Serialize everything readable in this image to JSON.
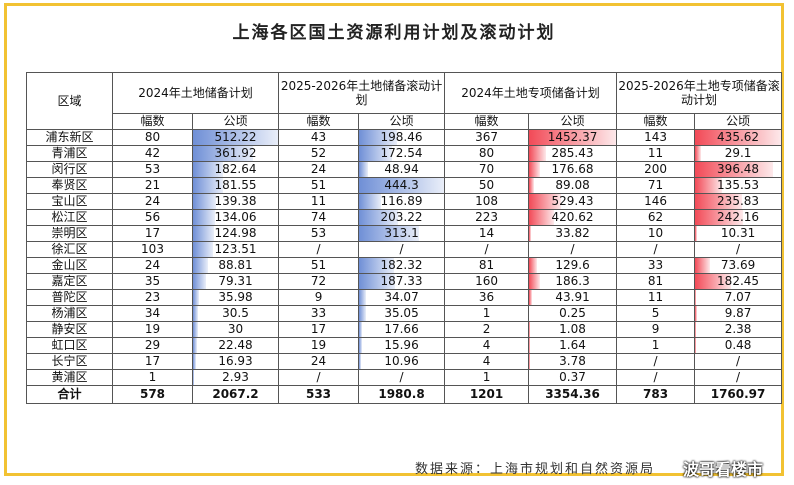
{
  "title": "上海各区国土资源利用计划及滚动计划",
  "headers": {
    "district": "区域",
    "groups": [
      "2024年土地储备计划",
      "2025-2026年土地储备滚动计划",
      "2024年土地专项储备计划",
      "2025-2026年土地专项储备滚动计划"
    ],
    "sub": [
      "幅数",
      "公顷"
    ]
  },
  "rows": [
    {
      "district": "浦东新区",
      "a_n": "80",
      "a_ha": "512.22",
      "b_n": "43",
      "b_ha": "198.46",
      "c_n": "367",
      "c_ha": "1452.37",
      "d_n": "143",
      "d_ha": "435.62"
    },
    {
      "district": "青浦区",
      "a_n": "42",
      "a_ha": "361.92",
      "b_n": "52",
      "b_ha": "172.54",
      "c_n": "80",
      "c_ha": "285.43",
      "d_n": "11",
      "d_ha": "29.1"
    },
    {
      "district": "闵行区",
      "a_n": "53",
      "a_ha": "182.64",
      "b_n": "24",
      "b_ha": "48.94",
      "c_n": "70",
      "c_ha": "176.68",
      "d_n": "200",
      "d_ha": "396.48"
    },
    {
      "district": "奉贤区",
      "a_n": "21",
      "a_ha": "181.55",
      "b_n": "51",
      "b_ha": "444.3",
      "c_n": "50",
      "c_ha": "89.08",
      "d_n": "71",
      "d_ha": "135.53"
    },
    {
      "district": "宝山区",
      "a_n": "24",
      "a_ha": "139.38",
      "b_n": "11",
      "b_ha": "116.89",
      "c_n": "108",
      "c_ha": "529.43",
      "d_n": "146",
      "d_ha": "235.83"
    },
    {
      "district": "松江区",
      "a_n": "56",
      "a_ha": "134.06",
      "b_n": "74",
      "b_ha": "203.22",
      "c_n": "223",
      "c_ha": "420.62",
      "d_n": "62",
      "d_ha": "242.16"
    },
    {
      "district": "崇明区",
      "a_n": "17",
      "a_ha": "124.98",
      "b_n": "53",
      "b_ha": "313.1",
      "c_n": "14",
      "c_ha": "33.82",
      "d_n": "10",
      "d_ha": "10.31"
    },
    {
      "district": "徐汇区",
      "a_n": "103",
      "a_ha": "123.51",
      "b_n": "/",
      "b_ha": "/",
      "c_n": "/",
      "c_ha": "/",
      "d_n": "/",
      "d_ha": "/"
    },
    {
      "district": "金山区",
      "a_n": "24",
      "a_ha": "88.81",
      "b_n": "51",
      "b_ha": "182.32",
      "c_n": "81",
      "c_ha": "129.6",
      "d_n": "33",
      "d_ha": "73.69"
    },
    {
      "district": "嘉定区",
      "a_n": "35",
      "a_ha": "79.31",
      "b_n": "72",
      "b_ha": "187.33",
      "c_n": "160",
      "c_ha": "186.3",
      "d_n": "81",
      "d_ha": "182.45"
    },
    {
      "district": "普陀区",
      "a_n": "23",
      "a_ha": "35.98",
      "b_n": "9",
      "b_ha": "34.07",
      "c_n": "36",
      "c_ha": "43.91",
      "d_n": "11",
      "d_ha": "7.07"
    },
    {
      "district": "杨浦区",
      "a_n": "34",
      "a_ha": "30.5",
      "b_n": "33",
      "b_ha": "35.05",
      "c_n": "1",
      "c_ha": "0.25",
      "d_n": "5",
      "d_ha": "9.87"
    },
    {
      "district": "静安区",
      "a_n": "19",
      "a_ha": "30",
      "b_n": "17",
      "b_ha": "17.66",
      "c_n": "2",
      "c_ha": "1.08",
      "d_n": "9",
      "d_ha": "2.38"
    },
    {
      "district": "虹口区",
      "a_n": "29",
      "a_ha": "22.48",
      "b_n": "19",
      "b_ha": "15.96",
      "c_n": "4",
      "c_ha": "1.64",
      "d_n": "1",
      "d_ha": "0.48"
    },
    {
      "district": "长宁区",
      "a_n": "17",
      "a_ha": "16.93",
      "b_n": "24",
      "b_ha": "10.96",
      "c_n": "4",
      "c_ha": "3.78",
      "d_n": "/",
      "d_ha": "/"
    },
    {
      "district": "黄浦区",
      "a_n": "1",
      "a_ha": "2.93",
      "b_n": "/",
      "b_ha": "/",
      "c_n": "1",
      "c_ha": "0.37",
      "d_n": "/",
      "d_ha": "/"
    }
  ],
  "total": {
    "district": "合计",
    "a_n": "578",
    "a_ha": "2067.2",
    "b_n": "533",
    "b_ha": "1980.8",
    "c_n": "1201",
    "c_ha": "3354.36",
    "d_n": "783",
    "d_ha": "1760.97"
  },
  "source": "数据来源：上海市规划和自然资源局",
  "watermark": "波哥看楼市",
  "bar_colors": {
    "a": "#6f8fd6",
    "b": "#6f8fd6",
    "c": "#f24a57",
    "d": "#f24a57"
  }
}
